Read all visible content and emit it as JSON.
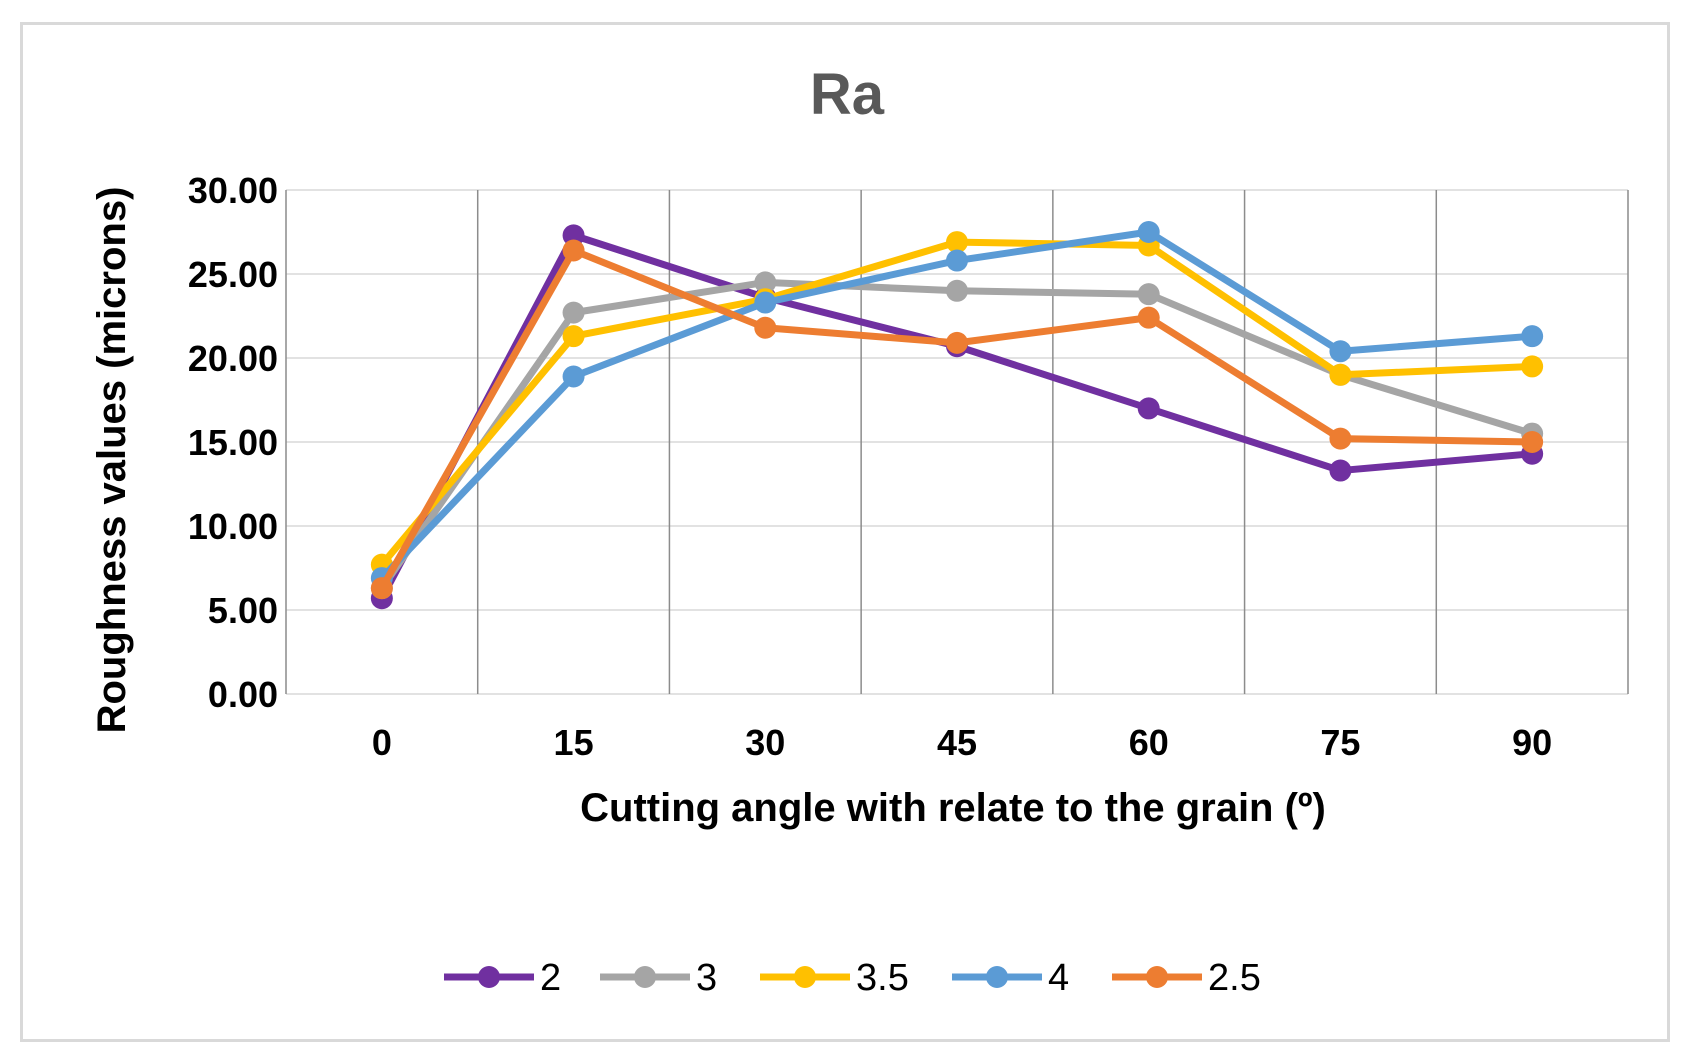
{
  "chart_data": {
    "type": "line",
    "title": "Ra",
    "xlabel": "Cutting angle with relate to the grain (º)",
    "ylabel": "Roughness values (microns)",
    "categories": [
      "0",
      "15",
      "30",
      "45",
      "60",
      "75",
      "90"
    ],
    "yticks": [
      "0.00",
      "5.00",
      "10.00",
      "15.00",
      "20.00",
      "25.00",
      "30.00"
    ],
    "ylim": [
      0,
      30
    ],
    "grid": true,
    "legend_position": "bottom",
    "series": [
      {
        "name": "2",
        "color": "#7030a0",
        "values": [
          5.7,
          27.3,
          23.6,
          20.7,
          17.0,
          13.3,
          14.3
        ]
      },
      {
        "name": "3",
        "color": "#a5a5a5",
        "values": [
          6.3,
          22.7,
          24.5,
          24.0,
          23.8,
          19.0,
          15.5
        ]
      },
      {
        "name": "3.5",
        "color": "#ffc000",
        "values": [
          7.7,
          21.3,
          23.5,
          26.9,
          26.7,
          19.0,
          19.5
        ]
      },
      {
        "name": "4",
        "color": "#5b9bd5",
        "values": [
          6.9,
          18.9,
          23.3,
          25.8,
          27.5,
          20.4,
          21.3
        ]
      },
      {
        "name": "2.5",
        "color": "#ed7d31",
        "values": [
          6.3,
          26.4,
          21.8,
          20.9,
          22.4,
          15.2,
          15.0
        ]
      }
    ]
  }
}
